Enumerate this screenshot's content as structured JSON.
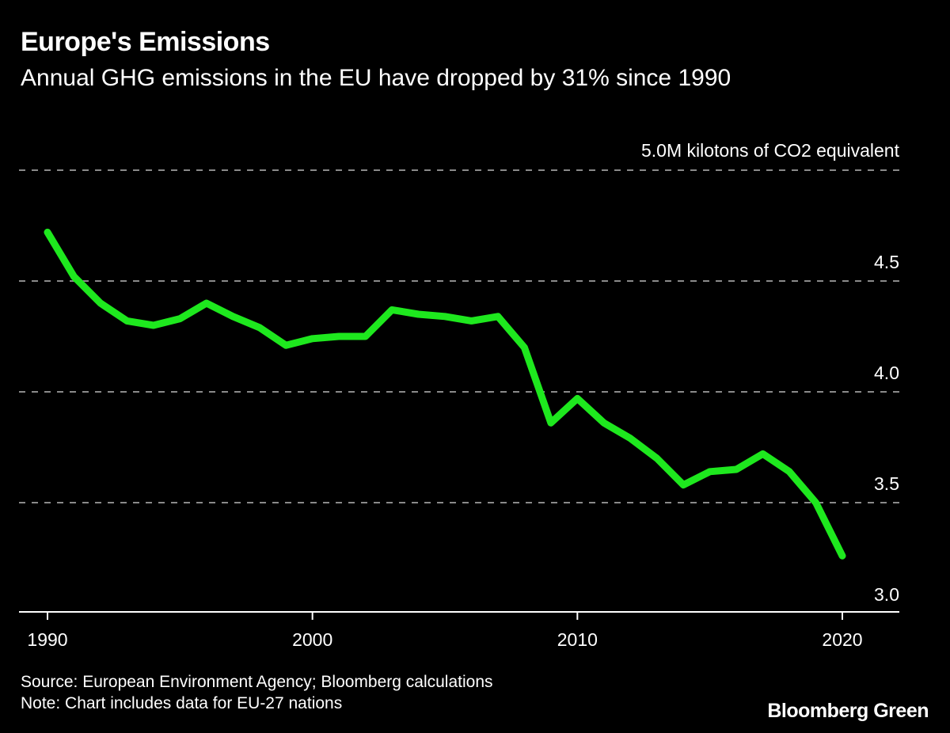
{
  "chart_data": {
    "type": "line",
    "title": "Europe's Emissions",
    "subtitle": "Annual GHG emissions in the EU have dropped by 31% since 1990",
    "unit_label": "5.0M kilotons of CO2 equivalent",
    "ylim": [
      3.0,
      5.0
    ],
    "y_ticks": [
      3.0,
      3.5,
      4.0,
      4.5,
      5.0
    ],
    "y_tick_labels": [
      "3.0",
      "3.5",
      "4.0",
      "4.5"
    ],
    "x_ticks": [
      1990,
      2000,
      2010,
      2020
    ],
    "x_tick_labels": [
      "1990",
      "2000",
      "2010",
      "2020"
    ],
    "xlim": [
      1989,
      2021
    ],
    "grid": true,
    "line_color": "#1ee81e",
    "x": [
      1990,
      1991,
      1992,
      1993,
      1994,
      1995,
      1996,
      1997,
      1998,
      1999,
      2000,
      2001,
      2002,
      2003,
      2004,
      2005,
      2006,
      2007,
      2008,
      2009,
      2010,
      2011,
      2012,
      2013,
      2014,
      2015,
      2016,
      2017,
      2018,
      2019,
      2020
    ],
    "values": [
      4.72,
      4.52,
      4.4,
      4.32,
      4.3,
      4.33,
      4.4,
      4.34,
      4.29,
      4.21,
      4.24,
      4.25,
      4.25,
      4.37,
      4.35,
      4.34,
      4.32,
      4.34,
      4.2,
      3.86,
      3.97,
      3.86,
      3.79,
      3.7,
      3.58,
      3.64,
      3.65,
      3.72,
      3.64,
      3.5,
      3.26
    ]
  },
  "footer": {
    "source": "Source: European Environment Agency; Bloomberg calculations",
    "note": "Note: Chart includes data for EU-27 nations",
    "brand": "Bloomberg Green"
  }
}
